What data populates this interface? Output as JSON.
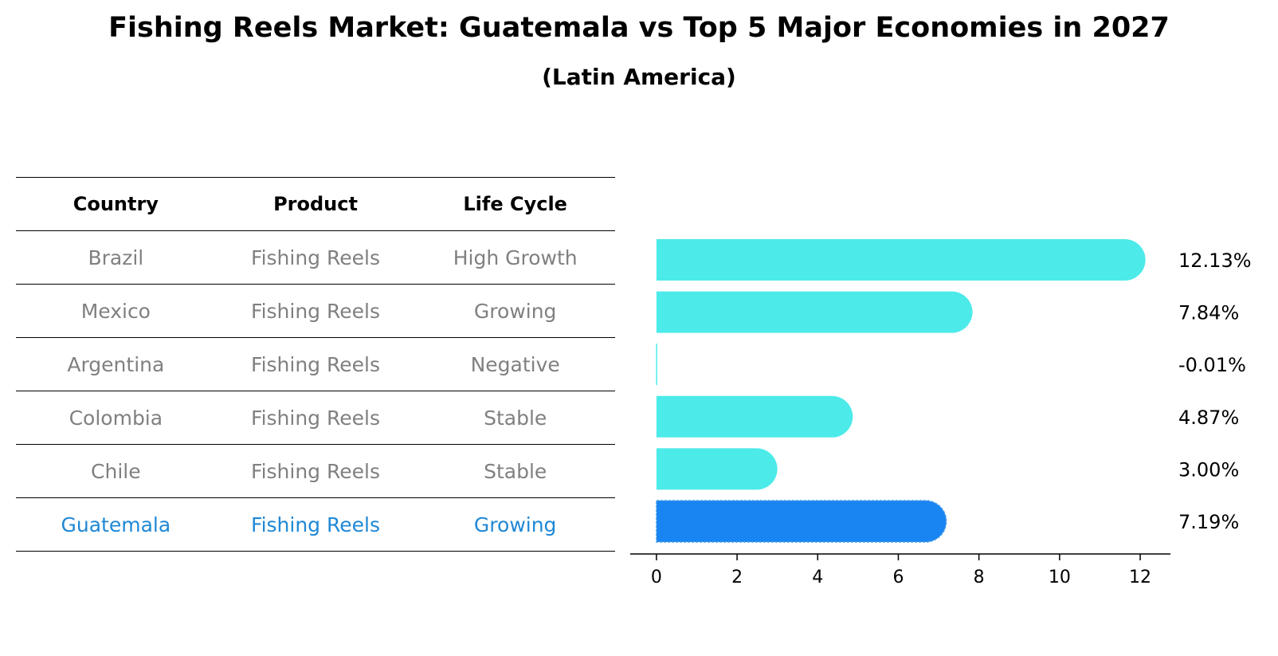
{
  "title": "Fishing Reels Market: Guatemala vs Top 5 Major Economies in 2027",
  "subtitle": "(Latin America)",
  "table": {
    "headers": [
      "Country",
      "Product",
      "Life Cycle"
    ],
    "rows": [
      [
        "Brazil",
        "Fishing Reels",
        "High Growth"
      ],
      [
        "Mexico",
        "Fishing Reels",
        "Growing"
      ],
      [
        "Argentina",
        "Fishing Reels",
        "Negative"
      ],
      [
        "Colombia",
        "Fishing Reels",
        "Stable"
      ],
      [
        "Chile",
        "Fishing Reels",
        "Stable"
      ],
      [
        "Guatemala",
        "Fishing Reels",
        "Growing"
      ]
    ]
  },
  "chart_data": {
    "type": "bar",
    "orientation": "horizontal",
    "categories": [
      "Brazil",
      "Mexico",
      "Argentina",
      "Colombia",
      "Chile",
      "Guatemala"
    ],
    "values": [
      12.13,
      7.84,
      -0.01,
      4.87,
      3.0,
      7.19
    ],
    "value_labels": [
      "12.13%",
      "7.84%",
      "-0.01%",
      "4.87%",
      "3.00%",
      "7.19%"
    ],
    "xlim": [
      -0.65,
      12.75
    ],
    "xticks": [
      0,
      2,
      4,
      6,
      8,
      10,
      12
    ],
    "highlight_index": 5,
    "colors": {
      "default": "#4deaea",
      "highlight": "#1985f2"
    }
  }
}
